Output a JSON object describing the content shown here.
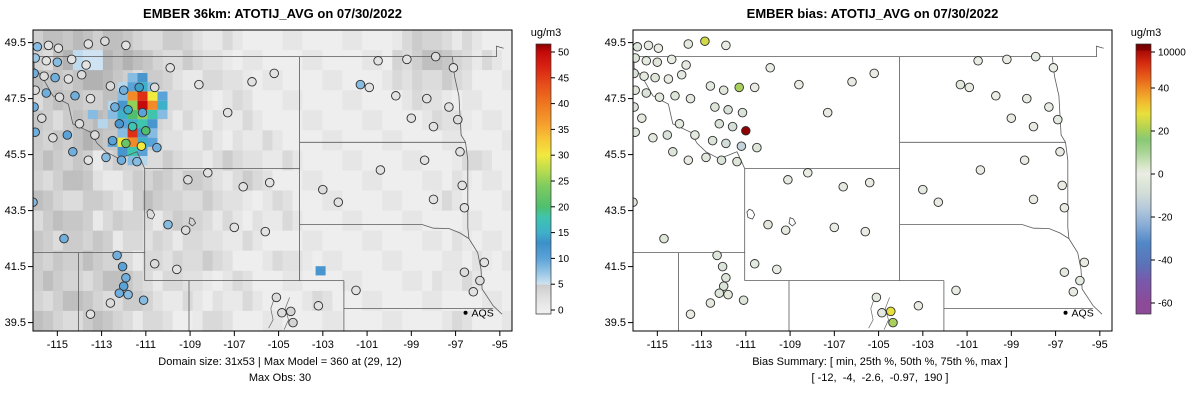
{
  "panels": [
    {
      "title": "EMBER 36km: ATOTIJ_AVG on 07/30/2022",
      "caption1": "Domain size: 31x53 | Max Model = 360 at (29, 12)",
      "caption2": "Max Obs: 30",
      "field": "obs",
      "raster": true,
      "colorbar": {
        "label": "ug/m3",
        "ticks": [
          "0",
          "5",
          "10",
          "15",
          "20",
          "25",
          "30",
          "35",
          "40",
          "45",
          "50"
        ],
        "stops": [
          [
            0,
            "#eeeeee"
          ],
          [
            3,
            "#dcdcdc"
          ],
          [
            4.9,
            "#cccccc"
          ],
          [
            5,
            "#cfe3f2"
          ],
          [
            7,
            "#9cc8e6"
          ],
          [
            10,
            "#5aa3d8"
          ],
          [
            13,
            "#3d8fc9"
          ],
          [
            15,
            "#3fb0c9"
          ],
          [
            18,
            "#3fc4ae"
          ],
          [
            20,
            "#4fbf6e"
          ],
          [
            24,
            "#7ecb5f"
          ],
          [
            27,
            "#b9dc4e"
          ],
          [
            30,
            "#f2e93f"
          ],
          [
            33,
            "#f7c837"
          ],
          [
            36,
            "#f59f2e"
          ],
          [
            40,
            "#ef7620"
          ],
          [
            44,
            "#e54a19"
          ],
          [
            47,
            "#d92313"
          ],
          [
            50,
            "#c40a0a"
          ]
        ]
      }
    },
    {
      "title": "EMBER bias: ATOTIJ_AVG on 07/30/2022",
      "caption1": "Bias Summary: [ min, 25th %, 50th %, 75th %, max ]",
      "caption2": "[ -12,  -4,  -2.6,  -0.97,  190 ]",
      "field": "bias",
      "raster": false,
      "colorbar": {
        "label": "ug/m3",
        "ticks": [
          "10000",
          "40",
          "20",
          "0",
          "-20",
          "-40",
          "-60"
        ],
        "stops": [
          [
            -60,
            "#8c4a98"
          ],
          [
            -50,
            "#7a58ac"
          ],
          [
            -42,
            "#5b72b8"
          ],
          [
            -32,
            "#5288c8"
          ],
          [
            -24,
            "#86abd6"
          ],
          [
            -16,
            "#b4c9dc"
          ],
          [
            -9,
            "#d2ddd8"
          ],
          [
            -4,
            "#dde6d8"
          ],
          [
            -1,
            "#e8ece2"
          ],
          [
            0,
            "#ecece6"
          ],
          [
            4,
            "#d6e6c6"
          ],
          [
            10,
            "#aad596"
          ],
          [
            16,
            "#88c875"
          ],
          [
            22,
            "#b9d44f"
          ],
          [
            28,
            "#e8e03c"
          ],
          [
            34,
            "#f2b82e"
          ],
          [
            40,
            "#ee8822"
          ],
          [
            46,
            "#e55517"
          ],
          [
            52,
            "#d42810"
          ],
          [
            60,
            "#a80b06"
          ],
          [
            200,
            "#8b0000"
          ]
        ]
      }
    }
  ],
  "axes": {
    "xlim": [
      -116.1,
      -94.45
    ],
    "ylim": [
      39.2,
      49.95
    ],
    "x_ticks": [
      -115,
      -113,
      -111,
      -109,
      -107,
      -105,
      -103,
      -101,
      -99,
      -97,
      -95
    ],
    "y_ticks": [
      39.5,
      41.5,
      43.5,
      45.5,
      47.5,
      49.5
    ]
  },
  "legend": {
    "label": "AQS",
    "lon": -96.55,
    "lat": 39.85
  },
  "map": {
    "borders": [
      [
        [
          -116.1,
          49.0
        ],
        [
          -95.15,
          49.0
        ],
        [
          -95.15,
          49.37
        ],
        [
          -94.83,
          49.3
        ]
      ],
      [
        [
          -111.05,
          45.0
        ],
        [
          -111.4,
          45.6
        ],
        [
          -112.2,
          45.35
        ],
        [
          -112.8,
          45.6
        ],
        [
          -113.2,
          45.9
        ],
        [
          -113.5,
          46.3
        ],
        [
          -114.3,
          46.6
        ],
        [
          -114.5,
          47.3
        ],
        [
          -115.2,
          47.6
        ],
        [
          -115.7,
          48.3
        ],
        [
          -116.05,
          48.6
        ],
        [
          -116.05,
          49.0
        ]
      ],
      [
        [
          -104.05,
          49.0
        ],
        [
          -104.05,
          41.0
        ]
      ],
      [
        [
          -111.05,
          45.0
        ],
        [
          -104.05,
          45.0
        ]
      ],
      [
        [
          -104.05,
          45.94
        ],
        [
          -96.55,
          45.94
        ]
      ],
      [
        [
          -97.15,
          49.0
        ],
        [
          -97.05,
          48.3
        ],
        [
          -96.85,
          47.6
        ],
        [
          -96.8,
          46.9
        ],
        [
          -96.75,
          46.2
        ],
        [
          -96.55,
          45.94
        ],
        [
          -96.45,
          45.3
        ],
        [
          -96.45,
          42.9
        ],
        [
          -96.4,
          42.5
        ]
      ],
      [
        [
          -104.05,
          43.0
        ],
        [
          -98.5,
          43.0
        ],
        [
          -98.0,
          42.87
        ],
        [
          -97.3,
          42.86
        ],
        [
          -96.8,
          42.7
        ],
        [
          -96.4,
          42.5
        ]
      ],
      [
        [
          -96.4,
          42.5
        ],
        [
          -96.0,
          42.0
        ],
        [
          -95.85,
          41.4
        ],
        [
          -95.8,
          40.7
        ],
        [
          -95.3,
          40.1
        ],
        [
          -94.9,
          39.8
        ]
      ],
      [
        [
          -102.05,
          40.0
        ],
        [
          -95.3,
          40.0
        ]
      ],
      [
        [
          -102.05,
          41.0
        ],
        [
          -102.05,
          39.2
        ]
      ],
      [
        [
          -111.05,
          41.0
        ],
        [
          -102.05,
          41.0
        ]
      ],
      [
        [
          -111.05,
          45.0
        ],
        [
          -111.05,
          41.0
        ]
      ],
      [
        [
          -116.1,
          42.0
        ],
        [
          -111.05,
          42.0
        ]
      ],
      [
        [
          -114.04,
          42.0
        ],
        [
          -114.04,
          39.2
        ]
      ],
      [
        [
          -109.05,
          41.0
        ],
        [
          -109.05,
          39.2
        ]
      ]
    ],
    "rivers": [
      [
        [
          -104.5,
          40.4
        ],
        [
          -104.7,
          40.0
        ],
        [
          -104.55,
          39.6
        ],
        [
          -104.75,
          39.25
        ]
      ],
      [
        [
          -105.2,
          40.35
        ],
        [
          -105.35,
          40.0
        ],
        [
          -105.25,
          39.6
        ],
        [
          -105.45,
          39.3
        ]
      ]
    ],
    "lakes": [
      [
        [
          -110.85,
          43.55
        ],
        [
          -110.7,
          43.5
        ],
        [
          -110.6,
          43.35
        ],
        [
          -110.7,
          43.2
        ],
        [
          -110.9,
          43.25
        ],
        [
          -110.95,
          43.45
        ]
      ],
      [
        [
          -109.0,
          43.25
        ],
        [
          -108.85,
          43.2
        ],
        [
          -108.75,
          43.05
        ],
        [
          -108.9,
          42.95
        ],
        [
          -109.05,
          43.05
        ]
      ]
    ]
  },
  "chart_data": {
    "type": "map",
    "units": "ug/m3",
    "model_max": 360,
    "model_max_cell": [
      29,
      12
    ],
    "obs_max": 30,
    "bias_summary": {
      "min": -12,
      "p25": -4,
      "p50": -2.6,
      "p75": -0.97,
      "max": 190
    },
    "stations": [
      [
        -115.9,
        49.35,
        8,
        -5
      ],
      [
        -115.4,
        49.4,
        2,
        -2
      ],
      [
        -114.95,
        49.3,
        2,
        -1
      ],
      [
        -113.6,
        49.45,
        2,
        -2
      ],
      [
        -112.85,
        49.55,
        3,
        25
      ],
      [
        -111.9,
        49.4,
        2,
        -1
      ],
      [
        -116.0,
        48.95,
        7,
        -4
      ],
      [
        -115.5,
        48.85,
        2,
        -2
      ],
      [
        -115.0,
        48.8,
        8,
        -3
      ],
      [
        -114.35,
        48.9,
        2,
        -1
      ],
      [
        -113.7,
        48.7,
        2,
        -2
      ],
      [
        -116.05,
        48.4,
        9,
        -6
      ],
      [
        -115.6,
        48.3,
        3,
        -2
      ],
      [
        -115.1,
        48.25,
        9,
        -4
      ],
      [
        -114.5,
        48.2,
        2,
        -1
      ],
      [
        -113.9,
        48.35,
        3,
        -2
      ],
      [
        -116.0,
        47.8,
        3,
        -3
      ],
      [
        -115.5,
        47.7,
        9,
        -5
      ],
      [
        -114.9,
        47.55,
        3,
        -2
      ],
      [
        -114.2,
        47.6,
        9,
        -4
      ],
      [
        -113.5,
        47.5,
        2,
        -2
      ],
      [
        -112.6,
        47.95,
        3,
        -2
      ],
      [
        -112.0,
        47.8,
        9,
        -3
      ],
      [
        -111.3,
        47.9,
        14,
        20
      ],
      [
        -110.6,
        47.9,
        3,
        -1
      ],
      [
        -112.4,
        47.2,
        9,
        -4
      ],
      [
        -111.8,
        47.1,
        15,
        -6
      ],
      [
        -111.15,
        47.0,
        10,
        -5
      ],
      [
        -112.2,
        46.6,
        12,
        -6
      ],
      [
        -111.6,
        46.5,
        18,
        -8
      ],
      [
        -111.0,
        46.35,
        20,
        190
      ],
      [
        -112.5,
        46.0,
        10,
        -5
      ],
      [
        -111.9,
        45.9,
        22,
        -9
      ],
      [
        -111.2,
        45.8,
        30,
        -12
      ],
      [
        -110.5,
        45.75,
        9,
        -4
      ],
      [
        -112.8,
        45.4,
        8,
        -3
      ],
      [
        -112.1,
        45.3,
        9,
        -5
      ],
      [
        -111.4,
        45.25,
        8,
        -4
      ],
      [
        -116.05,
        47.2,
        9,
        -5
      ],
      [
        -115.7,
        46.8,
        3,
        -2
      ],
      [
        -116.0,
        46.3,
        9,
        -4
      ],
      [
        -115.2,
        46.1,
        3,
        -2
      ],
      [
        -114.55,
        46.2,
        10,
        -6
      ],
      [
        -114.0,
        46.6,
        3,
        -2
      ],
      [
        -113.3,
        46.2,
        3,
        -2
      ],
      [
        -114.3,
        45.6,
        9,
        -4
      ],
      [
        -113.6,
        45.3,
        2,
        -1
      ],
      [
        -109.9,
        48.6,
        2,
        -1
      ],
      [
        -108.6,
        48.0,
        2,
        -1
      ],
      [
        -106.2,
        48.1,
        2,
        -1
      ],
      [
        -105.2,
        48.4,
        2,
        -1
      ],
      [
        -107.3,
        47.0,
        2,
        -1
      ],
      [
        -100.5,
        48.85,
        2,
        -1
      ],
      [
        -99.2,
        48.9,
        2,
        -1
      ],
      [
        -97.9,
        49.0,
        3,
        -2
      ],
      [
        -97.1,
        48.6,
        2,
        -1
      ],
      [
        -101.3,
        48.0,
        8,
        -3
      ],
      [
        -100.9,
        47.9,
        2,
        -1
      ],
      [
        -99.7,
        47.6,
        2,
        -1
      ],
      [
        -98.3,
        47.5,
        2,
        -1
      ],
      [
        -97.3,
        47.2,
        2,
        -1
      ],
      [
        -96.9,
        46.75,
        3,
        -2
      ],
      [
        -98.0,
        46.5,
        2,
        -1
      ],
      [
        -99.0,
        46.8,
        2,
        -1
      ],
      [
        -96.8,
        45.6,
        2,
        -1
      ],
      [
        -98.4,
        45.3,
        2,
        -1
      ],
      [
        -100.4,
        44.95,
        2,
        -1
      ],
      [
        -96.7,
        44.4,
        2,
        -1
      ],
      [
        -98.0,
        43.9,
        2,
        -1
      ],
      [
        -96.6,
        43.6,
        2,
        -1
      ],
      [
        -103.0,
        44.25,
        3,
        -2
      ],
      [
        -102.3,
        43.8,
        2,
        -1
      ],
      [
        -109.1,
        44.6,
        3,
        -2
      ],
      [
        -108.2,
        44.85,
        2,
        -1
      ],
      [
        -106.6,
        44.35,
        2,
        -2
      ],
      [
        -105.4,
        44.5,
        2,
        -1
      ],
      [
        -110.0,
        43.0,
        8,
        -3
      ],
      [
        -109.2,
        42.8,
        3,
        -2
      ],
      [
        -107.0,
        42.9,
        2,
        -1
      ],
      [
        -105.6,
        42.75,
        2,
        -1
      ],
      [
        -110.6,
        41.6,
        3,
        -2
      ],
      [
        -109.6,
        41.4,
        2,
        -1
      ],
      [
        -112.3,
        41.9,
        9,
        -4
      ],
      [
        -112.05,
        41.5,
        10,
        -5
      ],
      [
        -111.9,
        41.1,
        9,
        -4
      ],
      [
        -112.0,
        40.8,
        10,
        -5
      ],
      [
        -112.2,
        40.55,
        9,
        -4
      ],
      [
        -111.8,
        40.5,
        8,
        -3
      ],
      [
        -112.6,
        40.2,
        3,
        -2
      ],
      [
        -113.5,
        39.8,
        2,
        -1
      ],
      [
        -111.1,
        40.3,
        8,
        -4
      ],
      [
        -116.1,
        43.8,
        8,
        -3
      ],
      [
        -114.7,
        42.5,
        9,
        -4
      ],
      [
        -105.1,
        40.4,
        3,
        -2
      ],
      [
        -104.85,
        39.85,
        3,
        -2
      ],
      [
        -104.45,
        39.9,
        4,
        28
      ],
      [
        -104.35,
        39.5,
        4,
        20
      ],
      [
        -103.2,
        40.1,
        2,
        -1
      ],
      [
        -101.5,
        40.65,
        2,
        -1
      ],
      [
        -96.6,
        41.3,
        3,
        -2
      ],
      [
        -95.9,
        41.0,
        3,
        -2
      ],
      [
        -95.7,
        41.65,
        2,
        -1
      ],
      [
        -96.2,
        40.6,
        2,
        -1
      ]
    ],
    "raster": {
      "values": [
        "334332221100000000122100",
        "245543221100000000233210",
        "334432211110000000122100",
        "233332111010000000011000",
        "323443210110000000001100",
        "234332111011000000000000",
        "323122211211100000000110",
        "233112322121000000000100",
        "322213222110100000001000",
        "233122122101100000000000",
        "322311211110000000000100",
        "233221122100110000000010",
        "322332111010000000001100",
        "233222110110001000000000",
        "322321101100000000000100"
      ],
      "hotspot": [
        [
          -111.6,
          48.25,
          8
        ],
        [
          -111.15,
          48.25,
          12
        ],
        [
          -112.05,
          47.92,
          6
        ],
        [
          -111.6,
          47.92,
          10
        ],
        [
          -111.15,
          47.92,
          15
        ],
        [
          -110.7,
          47.92,
          8
        ],
        [
          -112.05,
          47.59,
          8
        ],
        [
          -111.6,
          47.59,
          38
        ],
        [
          -111.15,
          47.59,
          46
        ],
        [
          -110.7,
          47.59,
          30
        ],
        [
          -110.25,
          47.59,
          10
        ],
        [
          -112.5,
          47.26,
          6
        ],
        [
          -112.05,
          47.26,
          12
        ],
        [
          -111.6,
          47.26,
          25
        ],
        [
          -111.15,
          47.26,
          50
        ],
        [
          -110.7,
          47.26,
          38
        ],
        [
          -110.25,
          47.26,
          15
        ],
        [
          -112.5,
          46.93,
          8
        ],
        [
          -112.05,
          46.93,
          15
        ],
        [
          -111.6,
          46.93,
          20
        ],
        [
          -111.15,
          46.93,
          25
        ],
        [
          -110.7,
          46.93,
          18
        ],
        [
          -110.25,
          46.93,
          8
        ],
        [
          -112.05,
          46.6,
          10
        ],
        [
          -111.6,
          46.6,
          15
        ],
        [
          -111.15,
          46.6,
          18
        ],
        [
          -110.7,
          46.6,
          12
        ],
        [
          -112.05,
          46.27,
          8
        ],
        [
          -111.6,
          46.27,
          46
        ],
        [
          -111.15,
          46.27,
          12
        ],
        [
          -110.7,
          46.27,
          8
        ],
        [
          -112.5,
          45.94,
          10
        ],
        [
          -112.05,
          45.94,
          30
        ],
        [
          -111.6,
          45.94,
          38
        ],
        [
          -111.15,
          45.94,
          15
        ],
        [
          -110.7,
          45.94,
          10
        ],
        [
          -112.05,
          45.61,
          12
        ],
        [
          -111.6,
          45.61,
          18
        ],
        [
          -111.15,
          45.61,
          10
        ],
        [
          -111.6,
          45.28,
          8
        ],
        [
          -111.15,
          45.28,
          6
        ],
        [
          -113.4,
          46.93,
          8
        ],
        [
          -112.95,
          46.6,
          6
        ],
        [
          -103.1,
          41.35,
          12
        ]
      ]
    }
  }
}
